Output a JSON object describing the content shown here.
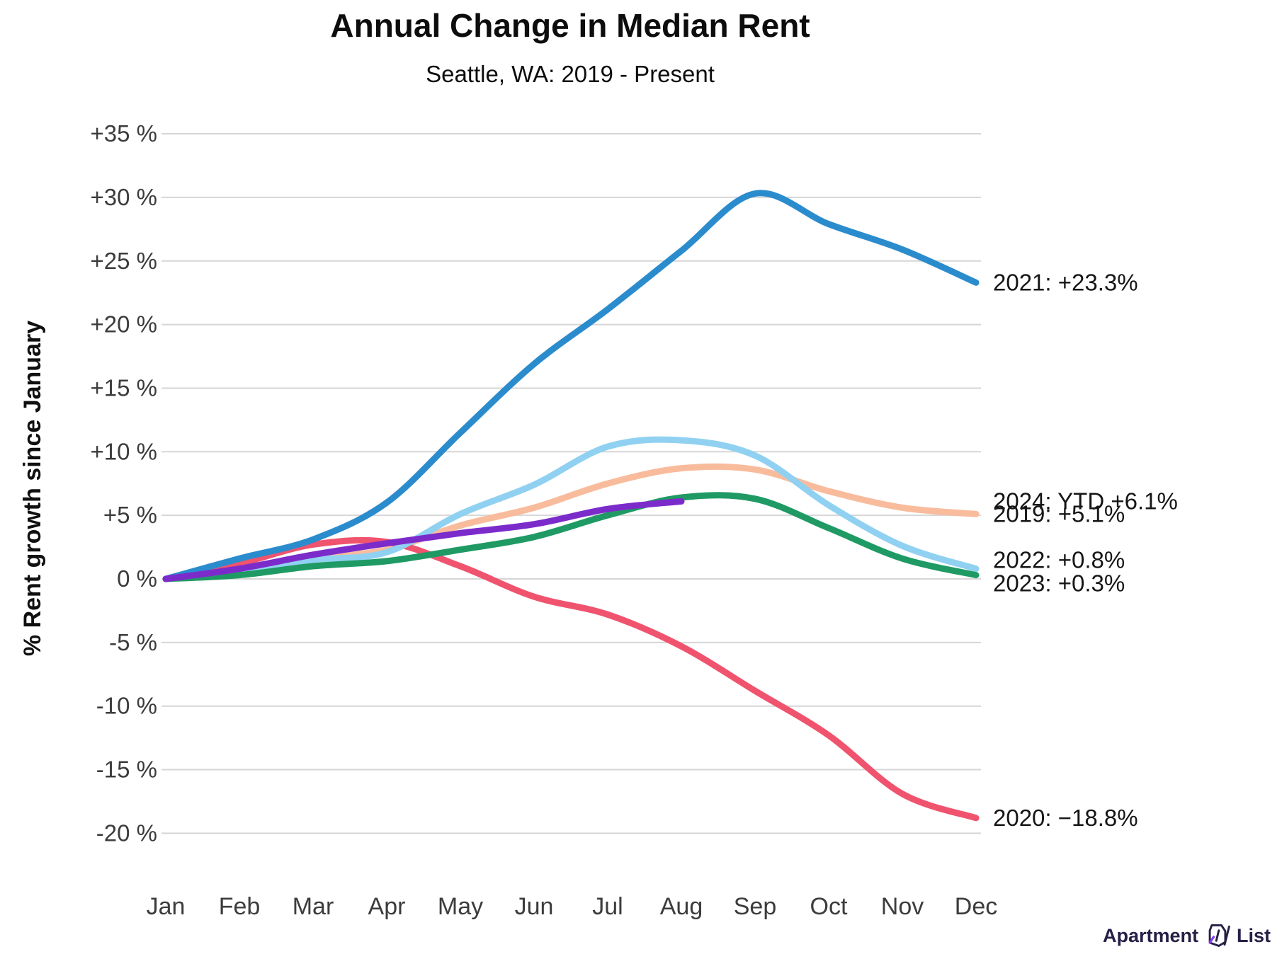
{
  "header": {
    "title": "Annual Change in Median Rent",
    "subtitle": "Seattle, WA: 2019 - Present"
  },
  "chart_data": {
    "type": "line",
    "title": "Annual Change in Median Rent",
    "subtitle": "Seattle, WA: 2019 - Present",
    "xlabel": "",
    "ylabel": "% Rent growth since January",
    "grid": "horizontal",
    "legend_position": "end-of-line-labels-right",
    "ylim": [
      -21,
      36
    ],
    "x_tick_labels": [
      "Jan",
      "Feb",
      "Mar",
      "Apr",
      "May",
      "Jun",
      "Jul",
      "Aug",
      "Sep",
      "Oct",
      "Nov",
      "Dec"
    ],
    "y_ticks": [
      {
        "value": 35,
        "label": "+35 %"
      },
      {
        "value": 30,
        "label": "+30 %"
      },
      {
        "value": 25,
        "label": "+25 %"
      },
      {
        "value": 20,
        "label": "+20 %"
      },
      {
        "value": 15,
        "label": "+15 %"
      },
      {
        "value": 10,
        "label": "+10 %"
      },
      {
        "value": 5,
        "label": "+5 %"
      },
      {
        "value": 0,
        "label": "0 %"
      },
      {
        "value": -5,
        "label": "-5 %"
      },
      {
        "value": -10,
        "label": "-10 %"
      },
      {
        "value": -15,
        "label": "-15 %"
      },
      {
        "value": -20,
        "label": "-20 %"
      }
    ],
    "series": [
      {
        "name": "2019",
        "color": "#f8bc9d",
        "values": [
          0,
          0.6,
          1.6,
          2.3,
          4.2,
          5.6,
          7.5,
          8.7,
          8.6,
          6.9,
          5.6,
          5.1
        ],
        "end_label": "2019: +5.1%"
      },
      {
        "name": "2020",
        "color": "#f0536e",
        "values": [
          0,
          1.2,
          2.7,
          2.9,
          1.0,
          -1.4,
          -2.8,
          -5.3,
          -8.8,
          -12.3,
          -16.9,
          -18.8
        ],
        "end_label": "2020: −18.8%"
      },
      {
        "name": "2021",
        "color": "#2b8ccd",
        "values": [
          0,
          1.6,
          3.1,
          6.0,
          11.5,
          16.9,
          21.2,
          25.8,
          30.3,
          27.9,
          25.9,
          23.3
        ],
        "end_label": "2021: +23.3%"
      },
      {
        "name": "2022",
        "color": "#90d1f1",
        "values": [
          0,
          0.7,
          1.5,
          2.1,
          5.1,
          7.4,
          10.4,
          10.9,
          9.7,
          5.8,
          2.6,
          0.8
        ],
        "end_label": "2022: +0.8%"
      },
      {
        "name": "2023",
        "color": "#1f9a64",
        "values": [
          0,
          0.3,
          1.0,
          1.4,
          2.3,
          3.3,
          5.0,
          6.4,
          6.3,
          4.0,
          1.6,
          0.3
        ],
        "end_label": "2023: +0.3%"
      },
      {
        "name": "2024",
        "color": "#7c2bcb",
        "values": [
          0,
          0.8,
          1.9,
          2.8,
          3.6,
          4.3,
          5.5,
          6.1
        ],
        "end_label": "2024: YTD +6.1%"
      }
    ]
  },
  "footer": {
    "brand_left": "Apartment",
    "brand_right": "List",
    "brand_color": "#262046",
    "brand_accent": "#8540f5"
  }
}
